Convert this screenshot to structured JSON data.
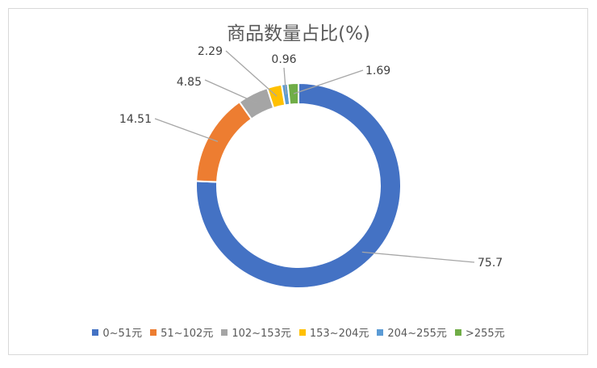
{
  "chart_data": {
    "type": "pie",
    "variant": "donut",
    "title": "商品数量占比(%)",
    "legend_position": "bottom",
    "categories": [
      "0~51元",
      "51~102元",
      "102~153元",
      "153~204元",
      "204~255元",
      ">255元"
    ],
    "values": [
      75.7,
      14.51,
      4.85,
      2.29,
      0.96,
      1.69
    ],
    "value_labels": [
      "75.7",
      "14.51",
      "4.85",
      "2.29",
      "0.96",
      "1.69"
    ],
    "colors": [
      "#4472C4",
      "#ED7D31",
      "#A5A5A5",
      "#FFC000",
      "#5B9BD5",
      "#70AD47"
    ]
  }
}
